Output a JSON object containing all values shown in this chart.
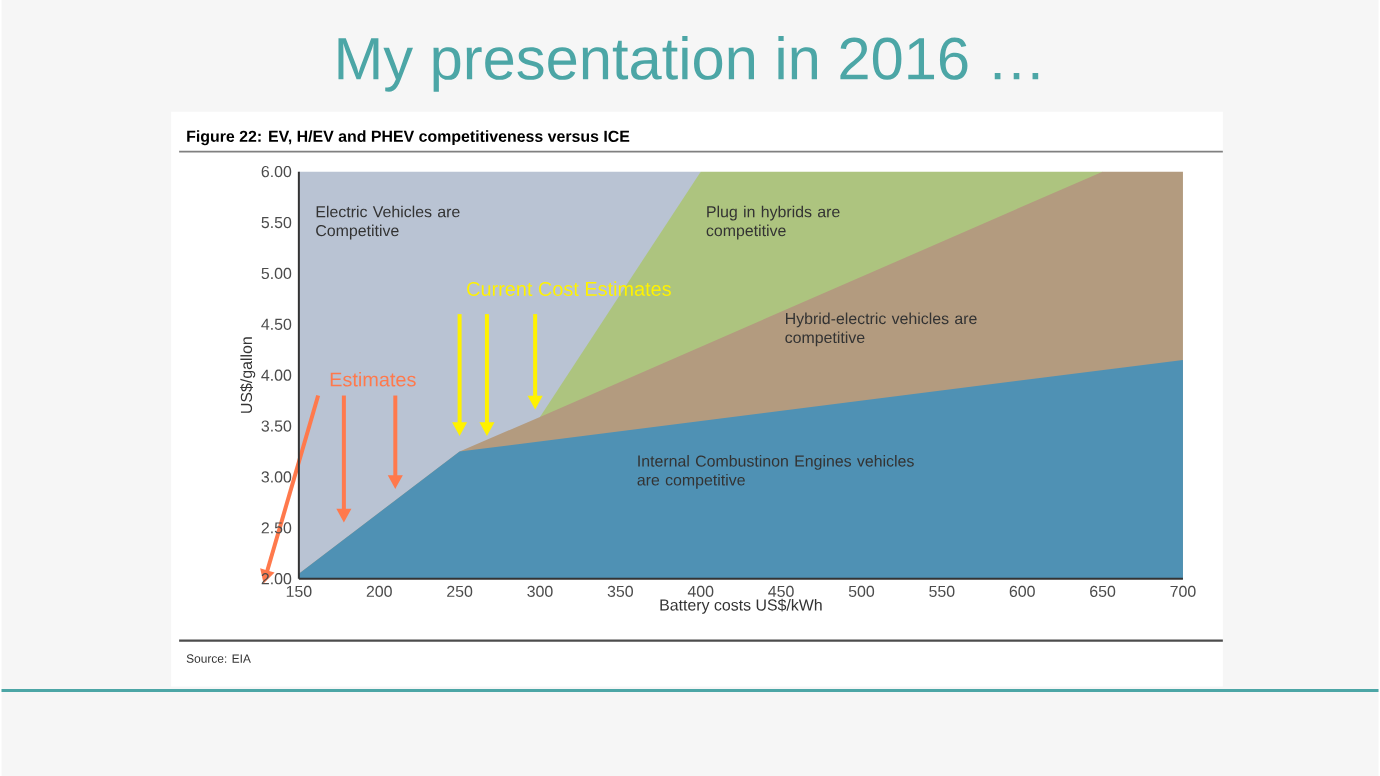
{
  "chart_data": {
    "type": "area",
    "title": "My presentation in 2016 …",
    "subtitle": "Figure 22: EV, H/EV and PHEV competitiveness versus ICE",
    "xlabel": "Battery costs US$/kWh",
    "ylabel": "US$/gallon",
    "xlim": [
      150,
      700
    ],
    "ylim": [
      2,
      6
    ],
    "xticks": [
      150,
      200,
      250,
      300,
      350,
      400,
      450,
      500,
      550,
      600,
      650,
      700
    ],
    "yticks": [
      {
        "value": 2,
        "label": "2.00"
      },
      {
        "value": 2.5,
        "label": "2.50"
      },
      {
        "value": 3,
        "label": "3.00"
      },
      {
        "value": 3.5,
        "label": "3.50"
      },
      {
        "value": 4,
        "label": "4.00"
      },
      {
        "value": 4.5,
        "label": "4.50"
      },
      {
        "value": 5,
        "label": "5.00"
      },
      {
        "value": 5.5,
        "label": "5.50"
      },
      {
        "value": 6,
        "label": "6.00"
      }
    ],
    "series": [
      {
        "name": "Internal Combustinon Engines vehicles are competitive",
        "color": "#4f91b4",
        "x": [
          150,
          250,
          700
        ],
        "values": [
          2.05,
          3.25,
          4.15
        ]
      },
      {
        "name": "Hybrid-electric vehicles are competitive",
        "color": "#b39b7f",
        "x": [
          150,
          250,
          300,
          650,
          700
        ],
        "values": [
          2.05,
          3.25,
          3.59,
          6,
          6
        ]
      },
      {
        "name": "Plug in hybrids are competitive",
        "color": "#adc47f",
        "x": [
          300,
          400,
          650
        ],
        "values": [
          3.59,
          6,
          6
        ]
      },
      {
        "name": "Electric Vehicles are Competitive",
        "color": "#b9c3d3",
        "x": [
          150,
          400
        ],
        "values": [
          6,
          6
        ]
      }
    ],
    "annotations": [
      {
        "text": "Current Cost Estimates",
        "x": 267,
        "y": 3.4
      },
      "Estimates",
      "Source: EIA"
    ]
  }
}
